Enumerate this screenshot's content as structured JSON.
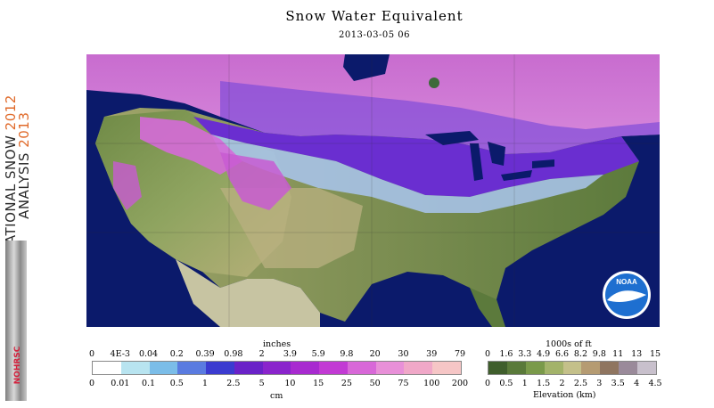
{
  "title": "Snow Water Equivalent",
  "datetime": "2013-03-05 06",
  "sidebar": {
    "line1_dark": "NATIONAL SNOW",
    "line1_accent": "2012",
    "line2_dark": "ANALYSIS",
    "line2_accent": "2013",
    "logo_text": "NOHRSC"
  },
  "map": {
    "logo_text": "NOAA",
    "colors": {
      "water": "#0b1a6b",
      "canada_land": "#d07ad6",
      "bare_ground": "#5e7a3e",
      "snow_purple": "#6a2ed0",
      "snow_light": "#a9c6f0"
    }
  },
  "swe_legend": {
    "unit_top": "inches",
    "unit_bottom": "cm",
    "top_labels": [
      "0",
      "4E-3",
      "0.04",
      "0.2",
      "0.39",
      "0.98",
      "2",
      "3.9",
      "5.9",
      "9.8",
      "20",
      "30",
      "39",
      "79"
    ],
    "bottom_labels": [
      "0",
      "0.01",
      "0.1",
      "0.5",
      "1",
      "2.5",
      "5",
      "10",
      "15",
      "25",
      "50",
      "75",
      "100",
      "200"
    ],
    "colors": [
      "#ffffff",
      "#b8e4f0",
      "#7bbde8",
      "#5a7be0",
      "#3b3bd0",
      "#6a22c8",
      "#8a24cc",
      "#a82ad0",
      "#c23ad4",
      "#d868d8",
      "#e890d8",
      "#f0a8c8",
      "#f6c6c6"
    ]
  },
  "elev_legend": {
    "unit_top": "1000s of ft",
    "unit_bottom": "Elevation (km)",
    "top_labels": [
      "0",
      "1.6",
      "3.3",
      "4.9",
      "6.6",
      "8.2",
      "9.8",
      "11",
      "13",
      "15"
    ],
    "bottom_labels": [
      "0",
      "0.5",
      "1",
      "1.5",
      "2",
      "2.5",
      "3",
      "3.5",
      "4",
      "4.5"
    ],
    "colors": [
      "#3f5e2c",
      "#5a7a3a",
      "#7a9a4a",
      "#a3b36a",
      "#c4c08a",
      "#b59b72",
      "#8f7560",
      "#9a8a9a",
      "#c8c0cc"
    ]
  }
}
